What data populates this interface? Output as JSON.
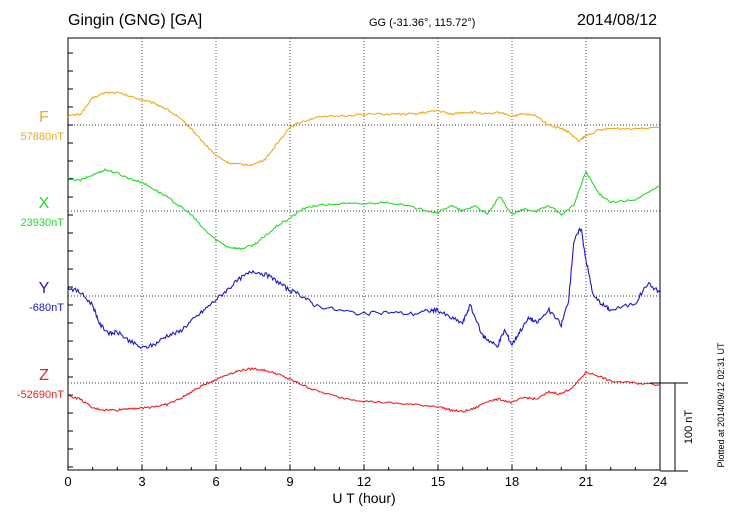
{
  "header": {
    "station": "Gingin (GNG)  [GA]",
    "coords": "GG (-31.36°, 115.72°)",
    "date": "2014/08/12"
  },
  "footer": {
    "plotted": "Plotted at 2014/09/12 02:31  UT",
    "scale_label": "100 nT"
  },
  "chart_data": {
    "type": "line",
    "xlabel": "U T (hour)",
    "xlim": [
      0,
      24
    ],
    "xticks": [
      "0",
      "3",
      "6",
      "9",
      "12",
      "15",
      "18",
      "21",
      "24"
    ],
    "scale_bar_nT": 100,
    "series": [
      {
        "name": "F",
        "baseline_label": "57880nT",
        "color": "#f0a818",
        "x": [
          0,
          0.5,
          1,
          1.5,
          2,
          2.5,
          3,
          3.5,
          4,
          4.5,
          5,
          5.5,
          6,
          6.5,
          7,
          7.5,
          8,
          8.5,
          9,
          9.5,
          10,
          11,
          12,
          13,
          14,
          14.5,
          15,
          15.5,
          16,
          16.5,
          17,
          17.5,
          18,
          18.5,
          19,
          19.5,
          20,
          20.3,
          20.7,
          21,
          21.5,
          22,
          23,
          24
        ],
        "y": [
          5,
          6,
          15,
          18,
          18,
          16,
          14,
          12,
          9,
          4,
          -2,
          -10,
          -17,
          -21,
          -22,
          -22,
          -19,
          -10,
          -1,
          2,
          4,
          5,
          6,
          6,
          6,
          7,
          8,
          6,
          7,
          7,
          6,
          7,
          5,
          6,
          5,
          0,
          -2,
          -4,
          -9,
          -6,
          -3,
          -2,
          -2,
          -1
        ]
      },
      {
        "name": "X",
        "baseline_label": "23930nT",
        "color": "#22dd22",
        "x": [
          0,
          0.5,
          1,
          1.5,
          2,
          2.5,
          3,
          3.5,
          4,
          4.5,
          5,
          5.5,
          6,
          6.5,
          7,
          7.5,
          8,
          8.5,
          9,
          9.5,
          10,
          11,
          12,
          13,
          14,
          15,
          15.5,
          16,
          16.5,
          17,
          17.5,
          18,
          18.5,
          19,
          19.5,
          20,
          20.5,
          21,
          21.5,
          22,
          23,
          24
        ],
        "y": [
          18,
          17,
          20,
          23,
          21,
          18,
          16,
          12,
          8,
          3,
          -2,
          -10,
          -16,
          -20,
          -21,
          -19,
          -14,
          -8,
          -4,
          1,
          3,
          4,
          4,
          5,
          2,
          -1,
          3,
          0,
          3,
          -2,
          8,
          -2,
          1,
          0,
          3,
          -2,
          3,
          22,
          10,
          5,
          6,
          14
        ]
      },
      {
        "name": "Y",
        "baseline_label": "-680nT",
        "color": "#1a1acc",
        "x": [
          0,
          0.5,
          1,
          1.3,
          1.7,
          2,
          2.5,
          3,
          3.5,
          4,
          4.5,
          5,
          5.5,
          6,
          6.5,
          7,
          7.5,
          8,
          8.5,
          9,
          9.5,
          10,
          11,
          12,
          13,
          14,
          14.7,
          15,
          15.5,
          16,
          16.3,
          16.8,
          17,
          17.4,
          17.7,
          18,
          18.3,
          18.7,
          19,
          19.5,
          20,
          20.3,
          20.5,
          20.8,
          21,
          21.3,
          21.7,
          22,
          23,
          23.5,
          24
        ],
        "y": [
          5,
          2,
          -5,
          -16,
          -21,
          -20,
          -25,
          -29,
          -27,
          -22,
          -20,
          -14,
          -8,
          -2,
          4,
          10,
          14,
          12,
          8,
          3,
          0,
          -5,
          -8,
          -10,
          -9,
          -10,
          -8,
          -8,
          -12,
          -15,
          -5,
          -22,
          -24,
          -28,
          -19,
          -27,
          -20,
          -12,
          -15,
          -8,
          -16,
          -2,
          30,
          38,
          20,
          0,
          -5,
          -8,
          -4,
          7,
          2
        ]
      },
      {
        "name": "Z",
        "baseline_label": "-52690nT",
        "color": "#ee2020",
        "x": [
          0,
          0.5,
          1,
          1.5,
          2,
          2.5,
          3,
          3.5,
          4,
          4.5,
          5,
          5.5,
          6,
          6.5,
          7,
          7.5,
          8,
          8.5,
          9,
          9.5,
          10,
          11,
          12,
          13,
          14,
          15,
          15.5,
          16,
          16.5,
          17,
          17.5,
          18,
          18.5,
          19,
          19.5,
          20,
          20.5,
          21,
          21.5,
          22,
          23,
          24
        ],
        "y": [
          -7,
          -9,
          -14,
          -15,
          -15,
          -14,
          -14,
          -13,
          -12,
          -9,
          -5,
          -1,
          2,
          5,
          7,
          8,
          7,
          5,
          2,
          -1,
          -4,
          -8,
          -10,
          -11,
          -12,
          -13,
          -15,
          -16,
          -14,
          -10,
          -9,
          -11,
          -8,
          -9,
          -5,
          -6,
          -2,
          6,
          4,
          1,
          0,
          -1
        ]
      }
    ]
  }
}
